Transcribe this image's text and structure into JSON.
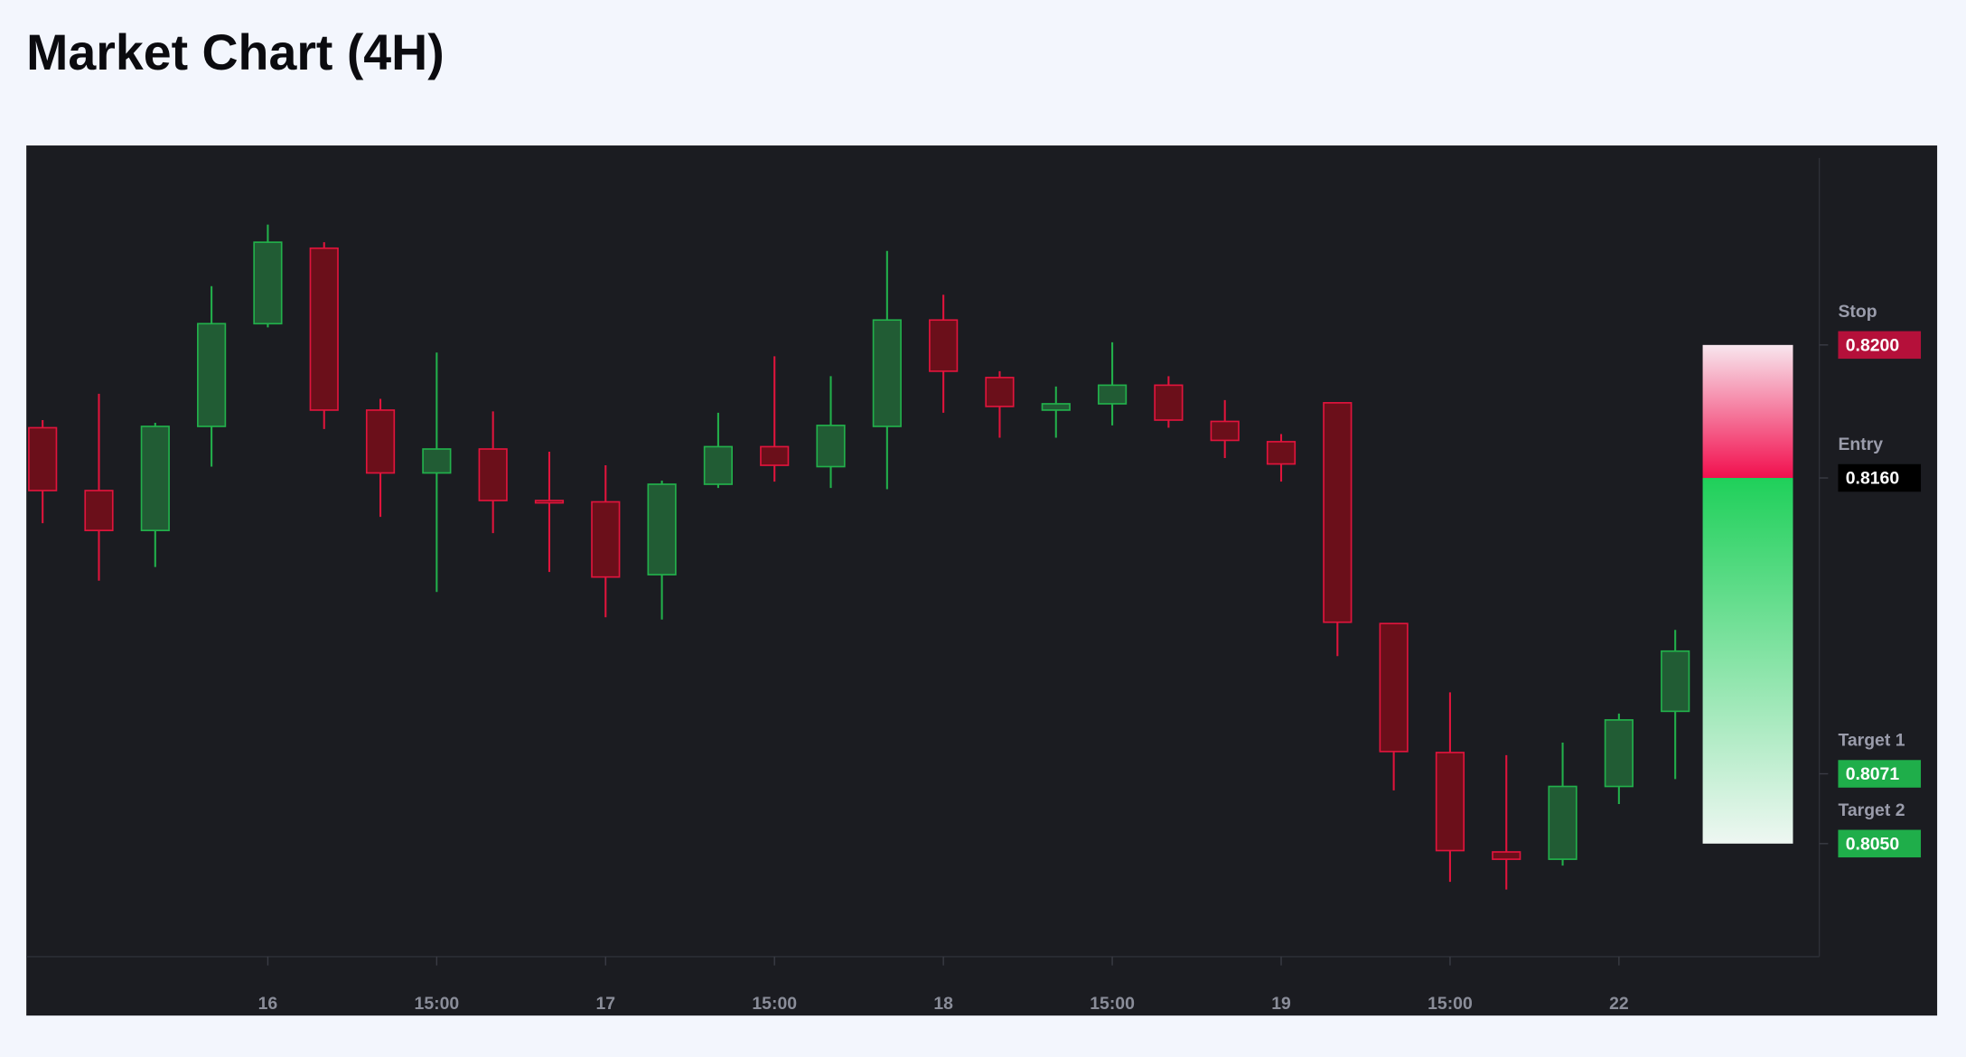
{
  "chart_data": {
    "type": "candlestick",
    "title": "Market Chart (4H)",
    "categories": [
      null,
      null,
      null,
      null,
      "16",
      null,
      null,
      "15:00",
      null,
      null,
      "17",
      null,
      null,
      "15:00",
      null,
      null,
      "18",
      null,
      null,
      "15:00",
      null,
      null,
      "19",
      null,
      null,
      "15:00",
      null,
      null,
      "22",
      null
    ],
    "open": [
      0.81751,
      0.81562,
      0.81442,
      0.81755,
      0.82064,
      0.82291,
      0.81804,
      0.81615,
      0.81687,
      0.81532,
      0.81528,
      0.81309,
      0.81581,
      0.81694,
      0.81634,
      0.81755,
      0.82075,
      0.81902,
      0.81804,
      0.81823,
      0.81879,
      0.8177,
      0.81709,
      0.81826,
      0.81162,
      0.80774,
      0.80475,
      0.80453,
      0.80672,
      0.80898
    ],
    "high": [
      0.81774,
      0.81853,
      0.81766,
      0.82177,
      0.82362,
      0.82309,
      0.81838,
      0.81977,
      0.818,
      0.81679,
      0.81638,
      0.81592,
      0.81796,
      0.81966,
      0.81906,
      0.82283,
      0.82151,
      0.81921,
      0.81875,
      0.82008,
      0.81906,
      0.81834,
      0.81732,
      0.81826,
      0.81162,
      0.80955,
      0.80766,
      0.80804,
      0.80891,
      0.81143
    ],
    "low": [
      0.81464,
      0.81291,
      0.81332,
      0.81634,
      0.82053,
      0.81747,
      0.81483,
      0.81257,
      0.81434,
      0.81317,
      0.81181,
      0.81174,
      0.8157,
      0.81589,
      0.8157,
      0.81566,
      0.81796,
      0.81721,
      0.81721,
      0.81758,
      0.81751,
      0.8166,
      0.81589,
      0.81064,
      0.8066,
      0.80385,
      0.80362,
      0.80434,
      0.80619,
      0.80694
    ],
    "close": [
      0.81562,
      0.81442,
      0.81755,
      0.82064,
      0.82309,
      0.81804,
      0.81615,
      0.81687,
      0.81532,
      0.81525,
      0.81302,
      0.81581,
      0.81694,
      0.81638,
      0.81758,
      0.82075,
      0.81921,
      0.81815,
      0.81823,
      0.81879,
      0.81774,
      0.81713,
      0.81642,
      0.81166,
      0.80777,
      0.80479,
      0.80453,
      0.80672,
      0.80872,
      0.81079
    ],
    "up_color": "#22b04b",
    "up_fill": "#215c34",
    "down_color": "#e0143c",
    "down_fill": "#6b0f1a",
    "ylim": [
      0.8016,
      0.826
    ],
    "levels": [
      {
        "name": "Stop",
        "value": 0.82,
        "label": "0.8200",
        "color": "#b5103a"
      },
      {
        "name": "Entry",
        "value": 0.816,
        "label": "0.8160",
        "color": "#000000"
      },
      {
        "name": "Target 1",
        "value": 0.8071,
        "label": "0.8071",
        "color": "#1fae4a"
      },
      {
        "name": "Target 2",
        "value": 0.805,
        "label": "0.8050",
        "color": "#1fae4a"
      }
    ]
  }
}
